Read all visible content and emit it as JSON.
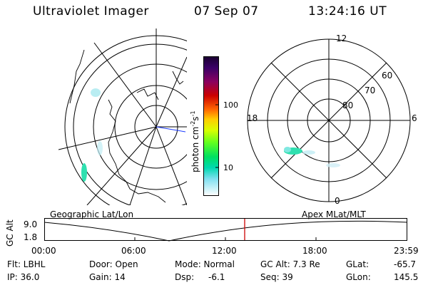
{
  "header": {
    "instrument": "Ultraviolet Imager",
    "date": "07 Sep 07",
    "time": "13:24:16 UT"
  },
  "colorbar": {
    "unit_label": "photon cm",
    "unit_sup1": "-2",
    "unit_mid": "s",
    "unit_sup2": "-1",
    "ticks": [
      "100",
      "10"
    ],
    "colors": [
      "#1a0030",
      "#3a0066",
      "#7a0090",
      "#a0004a",
      "#cc0000",
      "#ff3300",
      "#ff8800",
      "#ffd000",
      "#e0ff00",
      "#80ff00",
      "#00e040",
      "#00d8a0",
      "#40d0e0",
      "#a0e0f0",
      "#d8f0f8",
      "#ffffff"
    ]
  },
  "polar_plot": {
    "labels": {
      "mlt_top": "12",
      "mlt_left": "18",
      "mlt_right": "6",
      "mlt_bottom": "0",
      "lat_60": "60",
      "lat_70": "70",
      "lat_80": "80"
    }
  },
  "panel_labels": {
    "left": "Geographic Lat/Lon",
    "right": "Apex MLat/MLT"
  },
  "altitude_plot": {
    "ylabel": "GC Alt",
    "ytick_top": "9.0",
    "ytick_bottom": "1.8",
    "xticks": [
      "00:00",
      "06:00",
      "12:00",
      "18:00",
      "23:59"
    ],
    "marker_color": "#cc0000"
  },
  "info": {
    "filter": "Flt: LBHL",
    "ip": "IP: 36.0",
    "door": "Door: Open",
    "gain": "Gain: 14",
    "mode": "Mode: Normal",
    "dsp_label": "Dsp:",
    "dsp_value": "-6.1",
    "gc_alt": "GC Alt: 7.3 Re",
    "seq": "Seq: 39",
    "glat_label": "GLat:",
    "glat_value": "-65.7",
    "glon_label": "GLon:",
    "glon_value": "145.5"
  }
}
